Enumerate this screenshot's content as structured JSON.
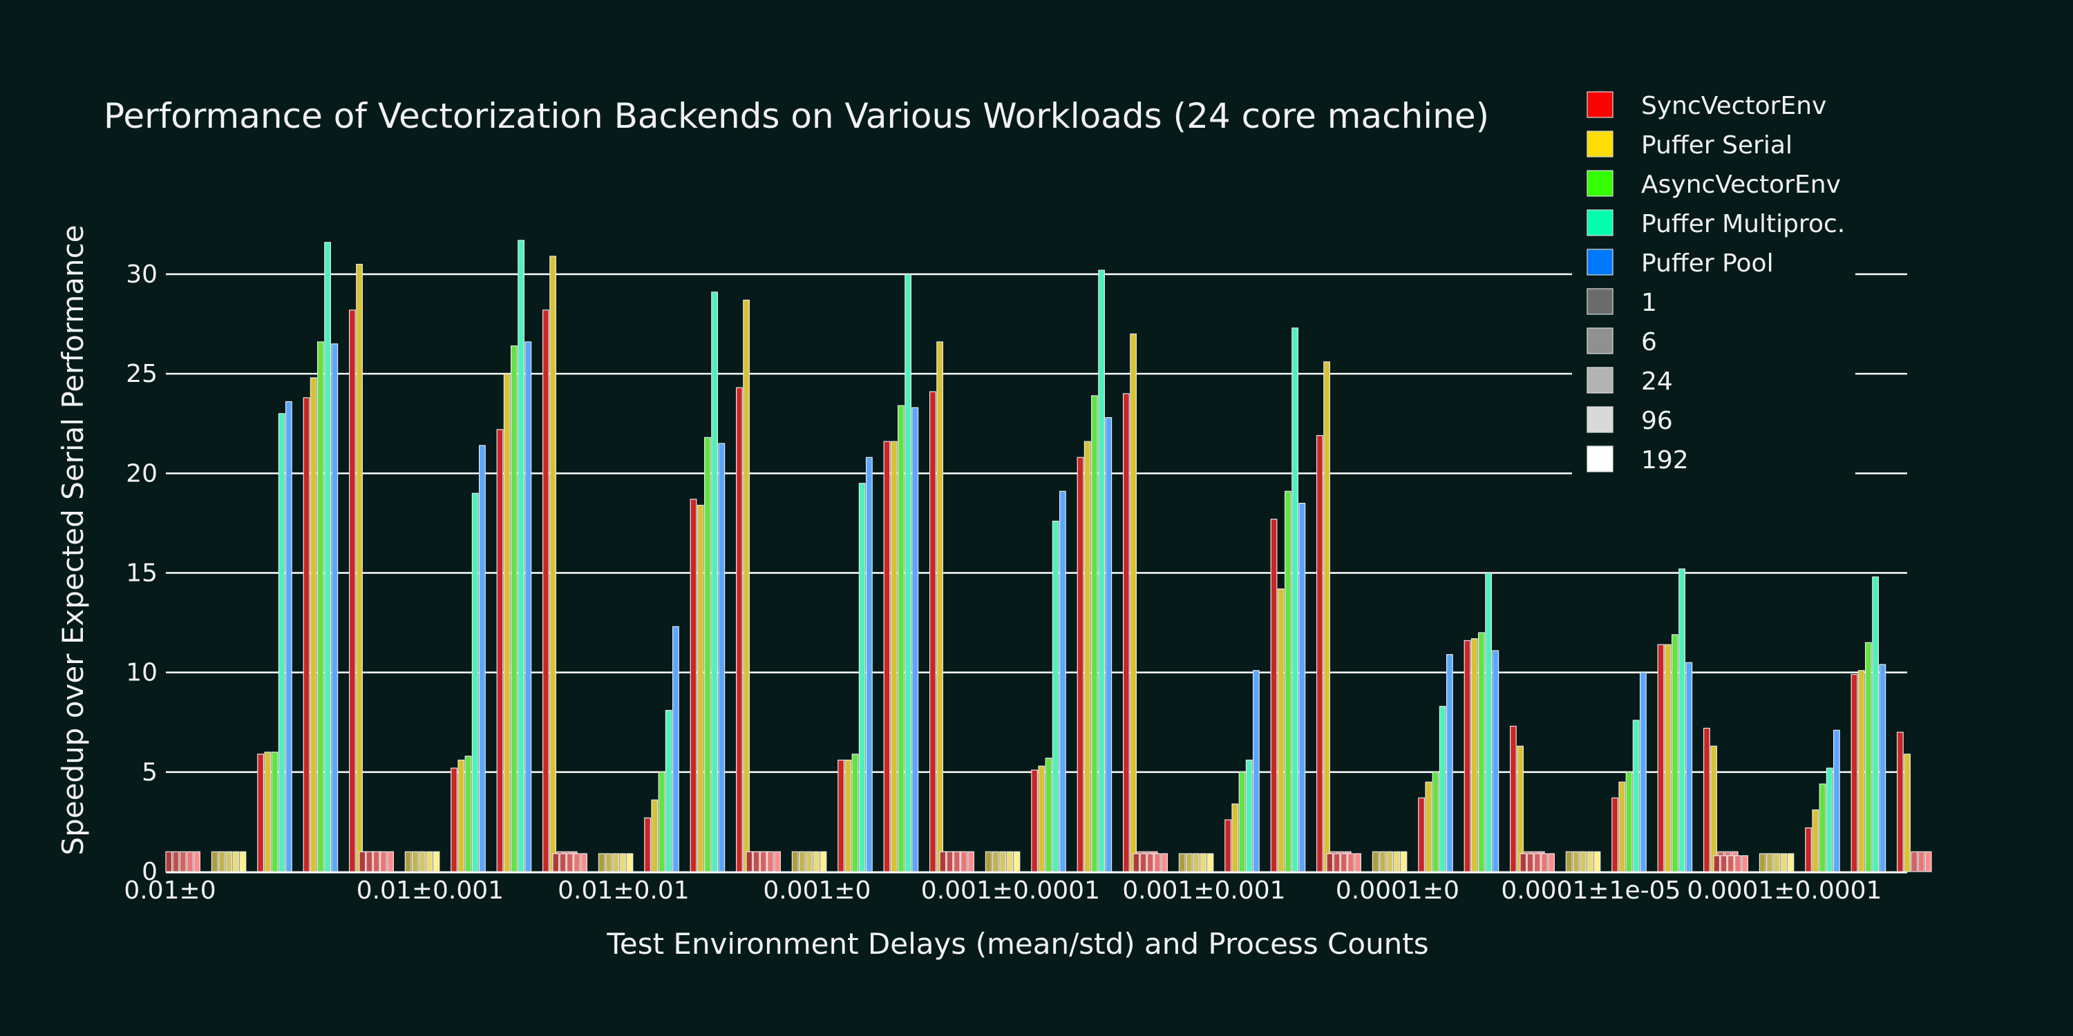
{
  "chart_data": {
    "type": "bar",
    "title": "Performance of Vectorization Backends on Various Workloads (24 core machine)",
    "xlabel": "Test Environment Delays (mean/std) and Process Counts",
    "ylabel": "Speedup over Expected Serial Performance",
    "ylim": [
      0,
      33
    ],
    "yticks": [
      0,
      5,
      10,
      15,
      20,
      25,
      30
    ],
    "grid": "horizontal",
    "legend_position": "top-right",
    "categories": [
      "0.01±0",
      "0.01±0.001",
      "0.01±0.01",
      "0.001±0",
      "0.001±0.0001",
      "0.001±0.001",
      "0.0001±0",
      "0.0001±1e-05",
      "0.0001±0.0001"
    ],
    "backends": [
      {
        "name": "SyncVectorEnv",
        "color": "#ff0000"
      },
      {
        "name": "Puffer Serial",
        "color": "#ffdd00"
      },
      {
        "name": "AsyncVectorEnv",
        "color": "#33ff00"
      },
      {
        "name": "Puffer Multiproc.",
        "color": "#00ffaa"
      },
      {
        "name": "Puffer Pool",
        "color": "#0077ff"
      }
    ],
    "process_counts": [
      {
        "name": "1",
        "shade": "#6b6b6b"
      },
      {
        "name": "6",
        "shade": "#909090"
      },
      {
        "name": "24",
        "shade": "#b3b3b3"
      },
      {
        "name": "96",
        "shade": "#d9d9d9"
      },
      {
        "name": "192",
        "shade": "#ffffff"
      }
    ],
    "values": [
      [
        [
          1,
          1,
          1,
          1,
          1
        ],
        [
          1,
          1,
          1,
          1,
          1
        ],
        [
          5.9,
          6.0,
          6.0,
          23.0,
          23.6
        ],
        [
          23.8,
          24.8,
          26.6,
          31.6,
          26.5
        ],
        [
          28.2,
          30.5,
          1,
          1,
          1
        ]
      ],
      [
        [
          1,
          1,
          1,
          1,
          1
        ],
        [
          1,
          1,
          1,
          1,
          1
        ],
        [
          5.2,
          5.6,
          5.8,
          19.0,
          21.4
        ],
        [
          22.2,
          25.0,
          26.4,
          31.7,
          26.6
        ],
        [
          28.2,
          30.9,
          1,
          1,
          1
        ]
      ],
      [
        [
          0.9,
          0.9,
          0.9,
          0.9,
          0.9
        ],
        [
          0.9,
          0.9,
          0.9,
          0.9,
          0.9
        ],
        [
          2.7,
          3.6,
          5.0,
          8.1,
          12.3
        ],
        [
          18.7,
          18.4,
          21.8,
          29.1,
          21.5
        ],
        [
          24.3,
          28.7,
          1,
          1,
          1
        ]
      ],
      [
        [
          1,
          1,
          1,
          1,
          1
        ],
        [
          1,
          1,
          1,
          1,
          1
        ],
        [
          5.6,
          5.6,
          5.9,
          19.5,
          20.8
        ],
        [
          21.6,
          21.6,
          23.4,
          30.0,
          23.3
        ],
        [
          24.1,
          26.6,
          1,
          1,
          1
        ]
      ],
      [
        [
          1,
          1,
          1,
          1,
          1
        ],
        [
          1,
          1,
          1,
          1,
          1
        ],
        [
          5.1,
          5.3,
          5.7,
          17.6,
          19.1
        ],
        [
          20.8,
          21.6,
          23.9,
          30.2,
          22.8
        ],
        [
          24.0,
          27.0,
          1,
          1,
          1
        ]
      ],
      [
        [
          0.9,
          0.9,
          0.9,
          0.9,
          0.9
        ],
        [
          0.9,
          0.9,
          0.9,
          0.9,
          0.9
        ],
        [
          2.6,
          3.4,
          5.0,
          5.6,
          10.1
        ],
        [
          17.7,
          14.2,
          19.1,
          27.3,
          18.5
        ],
        [
          21.9,
          25.6,
          1,
          1,
          1
        ]
      ],
      [
        [
          0.9,
          0.9,
          0.9,
          0.9,
          0.9
        ],
        [
          1,
          1,
          1,
          1,
          1
        ],
        [
          3.7,
          4.5,
          5.0,
          8.3,
          10.9
        ],
        [
          11.6,
          11.7,
          12.0,
          15.0,
          11.1
        ],
        [
          7.3,
          6.3,
          1,
          1,
          1
        ]
      ],
      [
        [
          0.9,
          0.9,
          0.9,
          0.9,
          0.9
        ],
        [
          1,
          1,
          1,
          1,
          1
        ],
        [
          3.7,
          4.5,
          5.0,
          7.6,
          10.0
        ],
        [
          11.4,
          11.4,
          11.9,
          15.2,
          10.5
        ],
        [
          7.2,
          6.3,
          1,
          1,
          1
        ]
      ],
      [
        [
          0.8,
          0.8,
          0.8,
          0.8,
          0.8
        ],
        [
          0.9,
          0.9,
          0.9,
          0.9,
          0.9
        ],
        [
          2.2,
          3.1,
          4.4,
          5.2,
          7.1
        ],
        [
          9.9,
          10.1,
          11.5,
          14.8,
          10.4
        ],
        [
          7.0,
          5.9,
          1,
          1,
          1
        ]
      ]
    ]
  }
}
